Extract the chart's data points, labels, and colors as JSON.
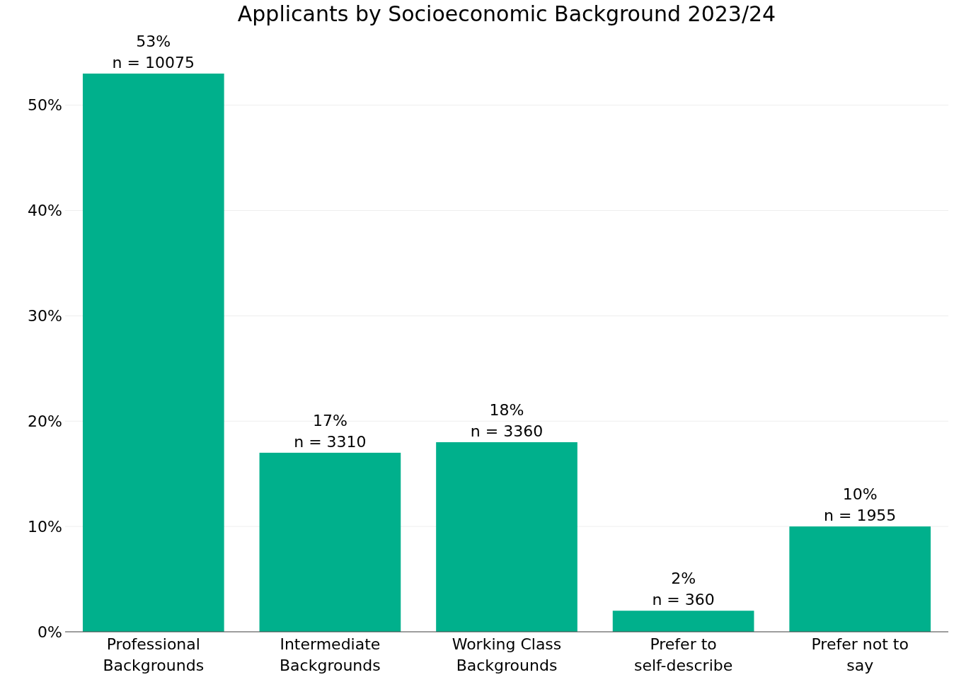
{
  "chart_data": {
    "type": "bar",
    "title": "Applicants by Socioeconomic Background 2023/24",
    "categories": [
      "Professional\nBackgrounds",
      "Intermediate\nBackgrounds",
      "Working Class\nBackgrounds",
      "Prefer to\nself-describe",
      "Prefer not to\nsay"
    ],
    "values": [
      53,
      17,
      18,
      2,
      10
    ],
    "value_labels": [
      "53%\nn = 10075",
      "17%\nn = 3310",
      "18%\nn = 3360",
      "2%\nn = 360",
      "10%\nn = 1955"
    ],
    "color": "#00b08c",
    "yticks": [
      {
        "value": 0,
        "label": "0%"
      },
      {
        "value": 10,
        "label": "10%"
      },
      {
        "value": 20,
        "label": "20%"
      },
      {
        "value": 30,
        "label": "30%"
      },
      {
        "value": 40,
        "label": "40%"
      },
      {
        "value": 50,
        "label": "50%"
      }
    ],
    "ylim": [
      0,
      53
    ],
    "grid": "y"
  }
}
